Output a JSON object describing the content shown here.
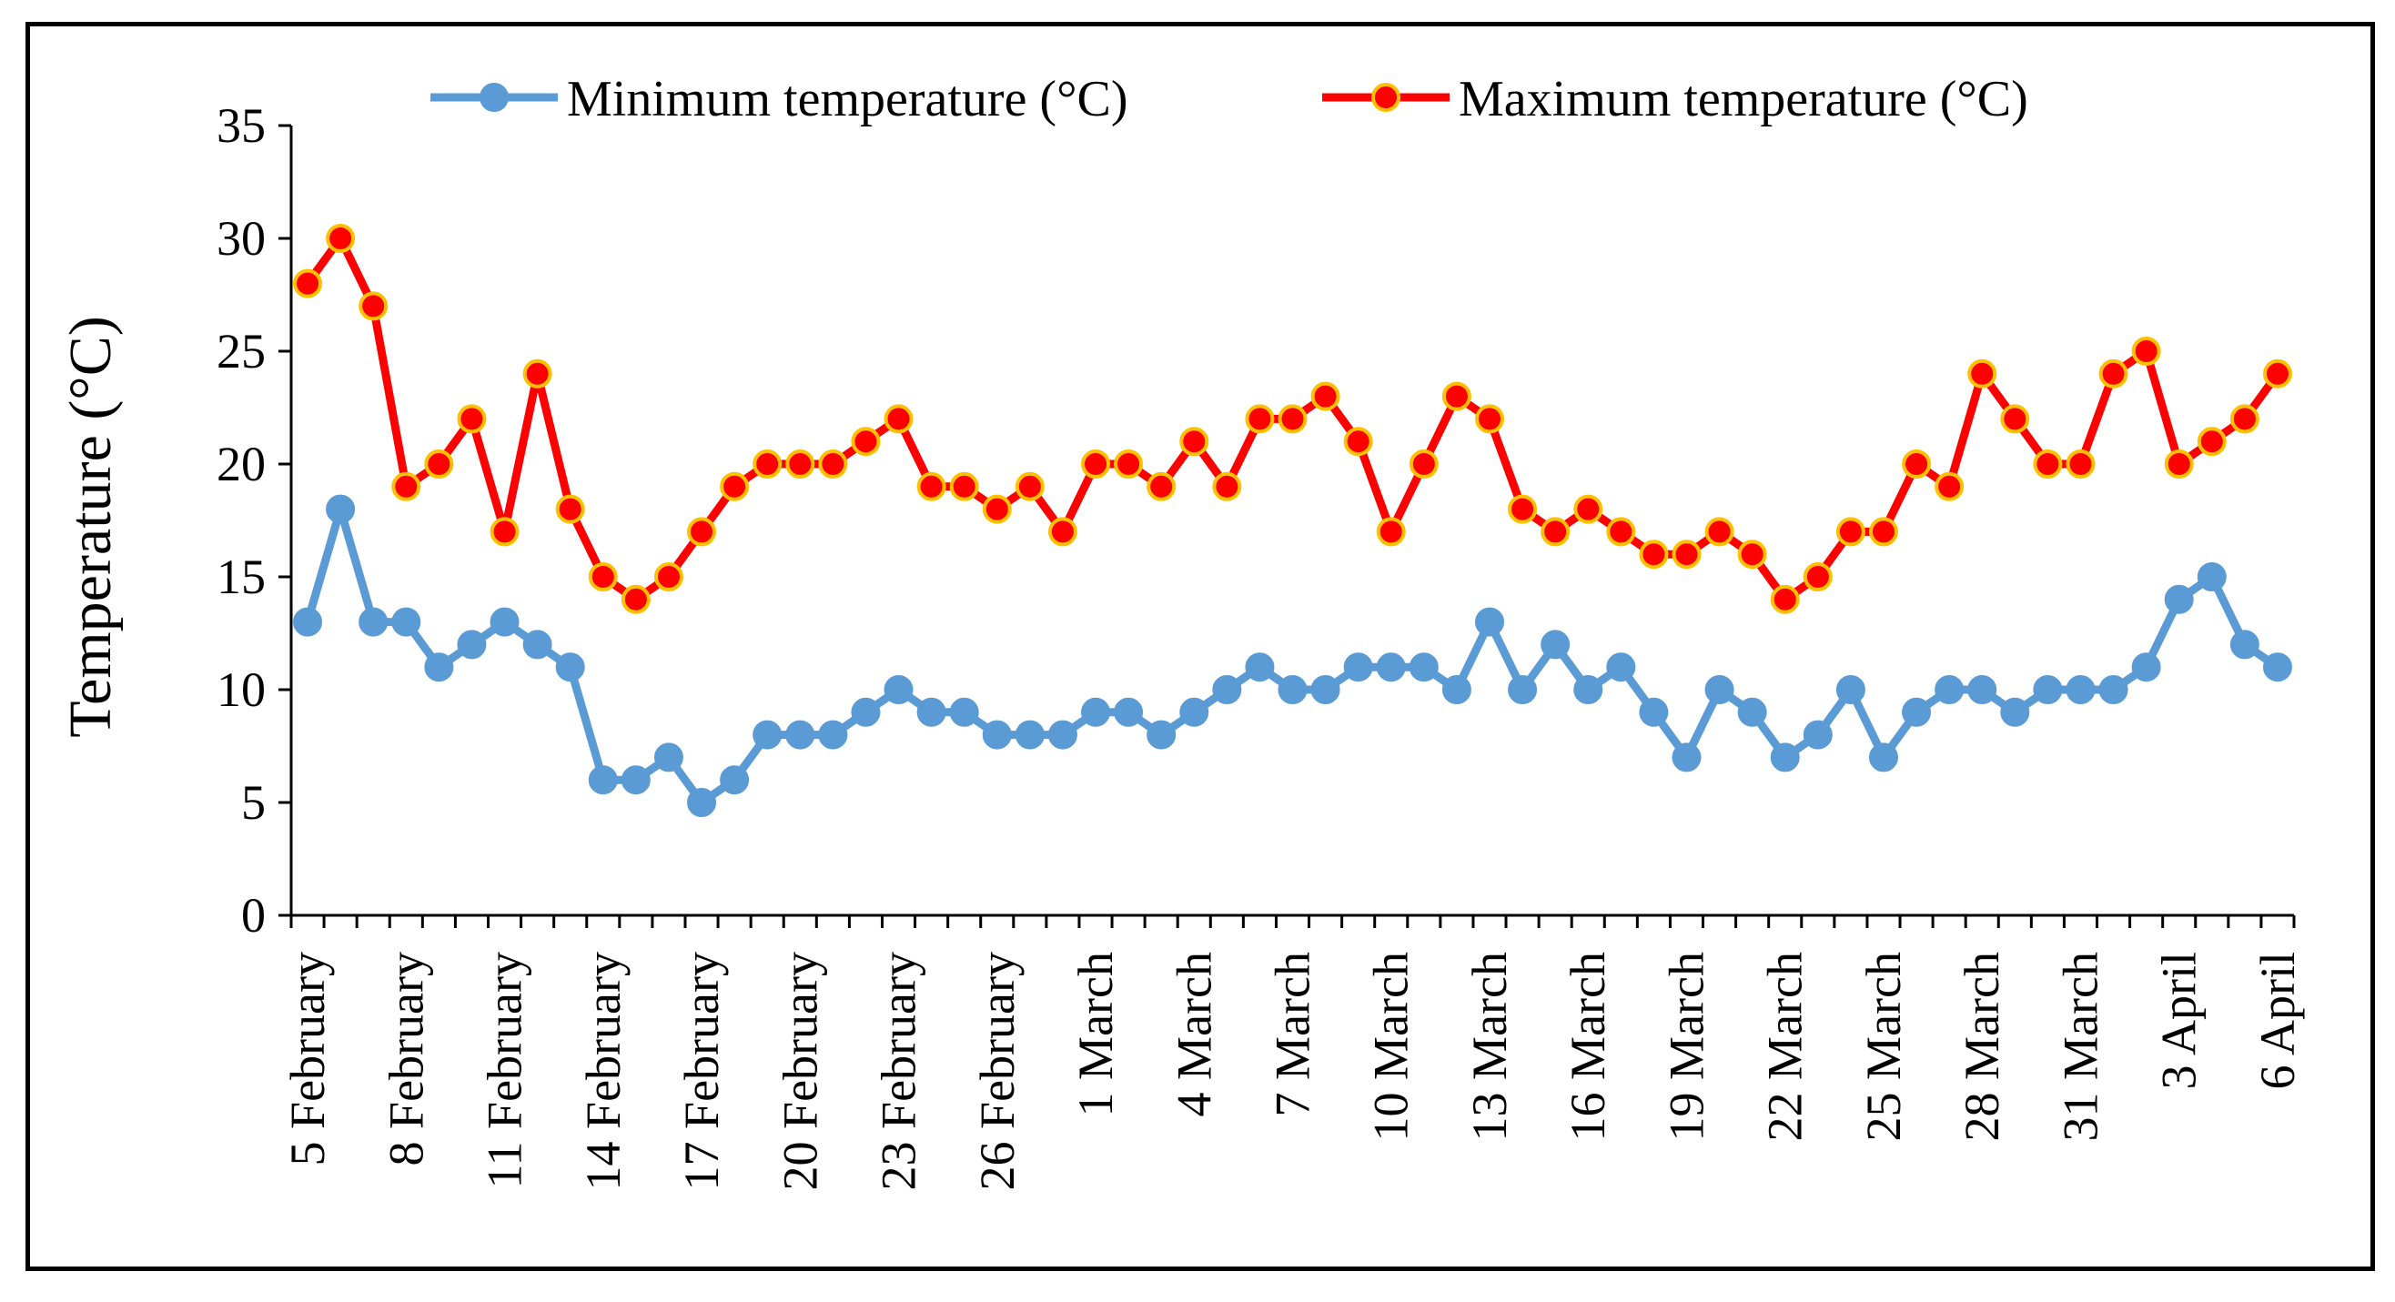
{
  "chart_data": {
    "type": "line",
    "ylabel": "Temperature (°C)",
    "xlabel": "",
    "ylim": [
      0,
      35
    ],
    "yticks": [
      0,
      5,
      10,
      15,
      20,
      25,
      30,
      35
    ],
    "grid": false,
    "legend_position": "top-center",
    "tick_labels": [
      "5 February",
      "8 February",
      "11 February",
      "14 February",
      "17 February",
      "20 February",
      "23 February",
      "26 February",
      "1 March",
      "4 March",
      "7 March",
      "10 March",
      "13 March",
      "16 March",
      "19 March",
      "22 March",
      "25 March",
      "28 March",
      "31 March",
      "3 April",
      "6 April"
    ],
    "tick_every": 3,
    "series": [
      {
        "name": "Minimum temperature (°C)",
        "color": "#5b9bd5",
        "marker_fill": "#5b9bd5",
        "marker_stroke": "#5b9bd5",
        "values": [
          13,
          18,
          13,
          13,
          11,
          12,
          13,
          12,
          11,
          6,
          6,
          7,
          5,
          6,
          8,
          8,
          8,
          9,
          10,
          9,
          9,
          8,
          8,
          8,
          9,
          9,
          8,
          9,
          10,
          11,
          10,
          10,
          11,
          11,
          11,
          10,
          13,
          10,
          12,
          10,
          11,
          9,
          7,
          10,
          9,
          7,
          8,
          10,
          7,
          9,
          10,
          10,
          9,
          10,
          10,
          10,
          11,
          14,
          15,
          12,
          11
        ]
      },
      {
        "name": "Maximum temperature (°C)",
        "color": "#ff0000",
        "marker_fill": "#ff0000",
        "marker_stroke": "#ffc000",
        "values": [
          28,
          30,
          27,
          19,
          20,
          22,
          17,
          24,
          18,
          15,
          14,
          15,
          17,
          19,
          20,
          20,
          20,
          21,
          22,
          19,
          19,
          18,
          19,
          17,
          20,
          20,
          19,
          21,
          19,
          22,
          22,
          23,
          21,
          17,
          20,
          23,
          22,
          18,
          17,
          18,
          17,
          16,
          16,
          17,
          16,
          14,
          15,
          17,
          17,
          20,
          19,
          24,
          22,
          20,
          20,
          24,
          25,
          20,
          21,
          22,
          24
        ]
      }
    ]
  }
}
